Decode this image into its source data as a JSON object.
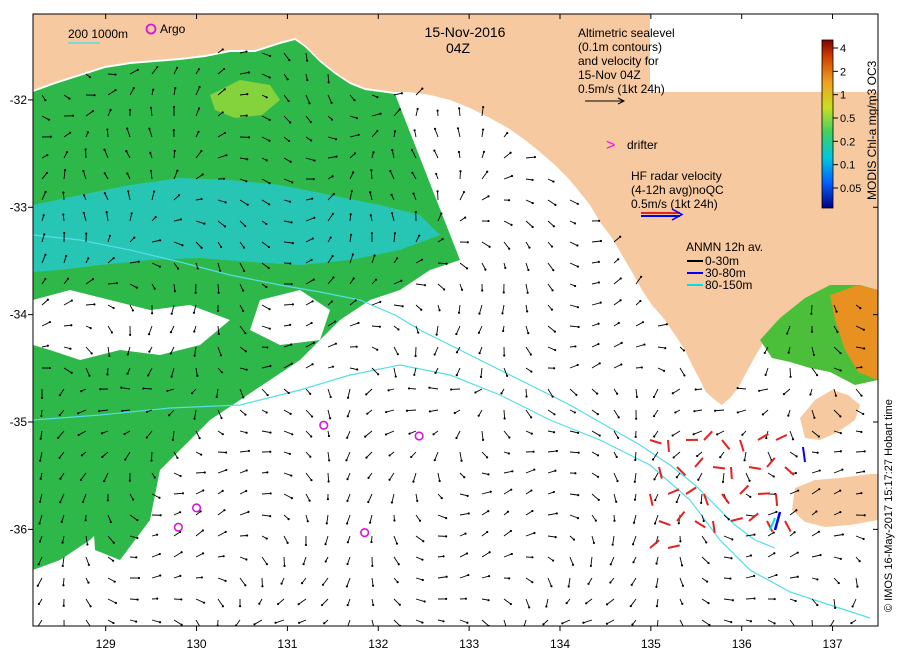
{
  "title": {
    "date": "15-Nov-2016",
    "time": "04Z"
  },
  "depth_legend": {
    "contours": "200  1000m",
    "argo_label": "Argo"
  },
  "altimetry_legend": {
    "lines": [
      "Altimetric sealevel",
      "(0.1m contours)",
      "and velocity for",
      "15-Nov 04Z",
      "0.5m/s (1kt 24h)"
    ]
  },
  "drifter_legend": {
    "label": "drifter",
    "symbol": ">"
  },
  "hf_radar_legend": {
    "lines": [
      "HF radar velocity",
      "(4-12h avg)noQC",
      "0.5m/s (1kt 24h)"
    ]
  },
  "anmn_legend": {
    "title": "ANMN 12h av.",
    "items": [
      {
        "label": "0-30m",
        "color": "#000000"
      },
      {
        "label": "30-80m",
        "color": "#0000ff"
      },
      {
        "label": "80-150m",
        "color": "#00e0e0"
      }
    ]
  },
  "colorbar": {
    "label": "MODIS Chl-a mg/m3 OC3",
    "ticks": [
      "4",
      "2",
      "1",
      "0.5",
      "0.2",
      "0.1",
      "0.05"
    ]
  },
  "credit": "© IMOS 16-May-2017 15:17:27 Hobart time",
  "axes": {
    "x_ticks": [
      "129",
      "130",
      "131",
      "132",
      "133",
      "134",
      "135",
      "136",
      "137"
    ],
    "y_ticks": [
      "-32",
      "-33",
      "-34",
      "-35",
      "-36"
    ],
    "x_range": [
      128.2,
      137.5
    ],
    "y_range": [
      -36.9,
      -31.2
    ]
  },
  "argo_floats": [
    {
      "lon": 131.4,
      "lat": -35.03
    },
    {
      "lon": 132.45,
      "lat": -35.13
    },
    {
      "lon": 130.0,
      "lat": -35.8
    },
    {
      "lon": 129.8,
      "lat": -35.98
    },
    {
      "lon": 131.85,
      "lat": -36.03
    }
  ],
  "colors": {
    "land": "#f7c9a0",
    "chl_green": "#2fb84a",
    "chl_cyan": "#27c6b4",
    "bathymetry_line": "#55dde8",
    "argo": "#d818d8",
    "hf_radar": "#e82020",
    "drifter": "#ff00ff"
  }
}
